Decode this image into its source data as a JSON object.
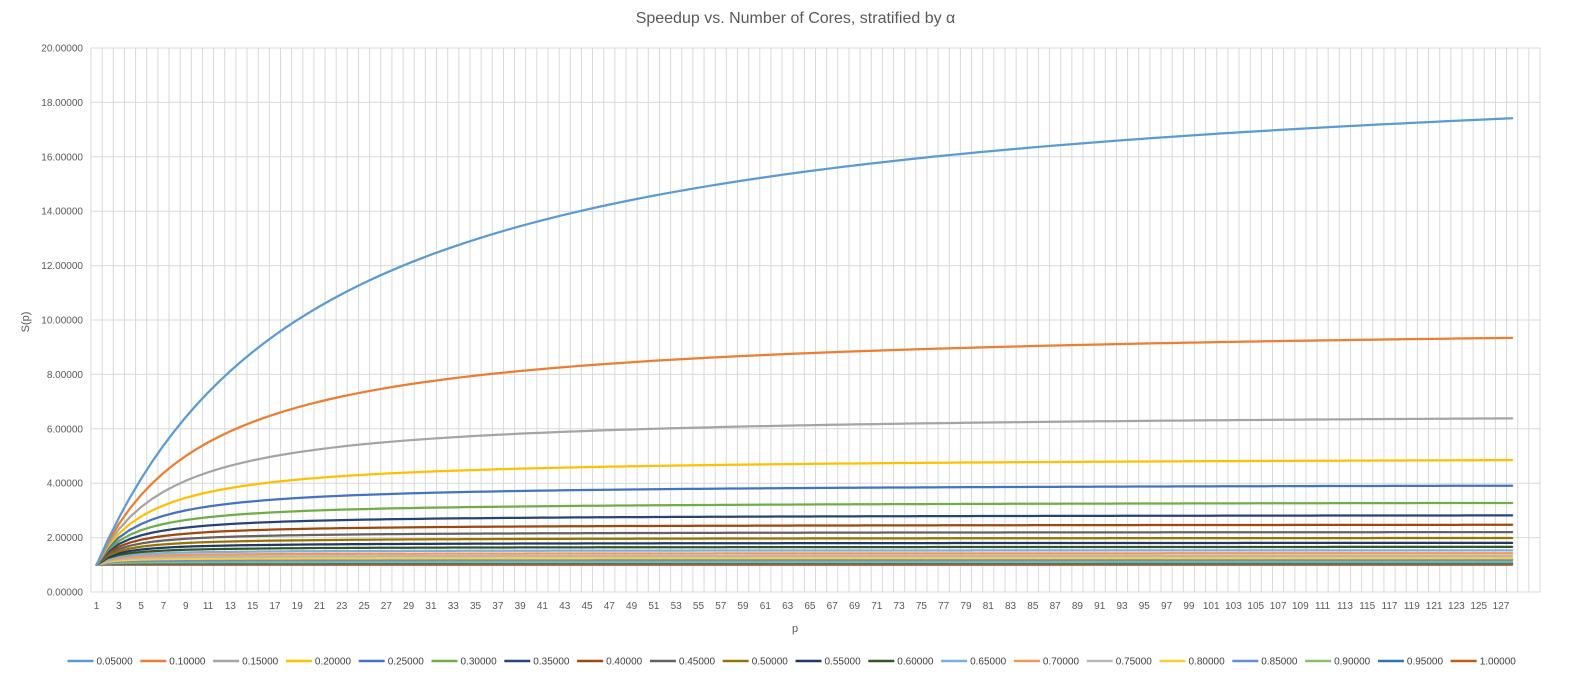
{
  "chart_data": {
    "type": "line",
    "title": "Speedup vs. Number of Cores, stratified by α",
    "xlabel": "p",
    "ylabel": "S(p)",
    "x_range": [
      1,
      128
    ],
    "ylim": [
      0,
      20
    ],
    "y_tick_step": 2,
    "y_tick_format_decimals": 5,
    "x_tick_labels": [
      "1",
      "3",
      "5",
      "7",
      "9",
      "11",
      "13",
      "15",
      "17",
      "19",
      "21",
      "23",
      "25",
      "27",
      "29",
      "31",
      "33",
      "35",
      "37",
      "39",
      "41",
      "43",
      "45",
      "47",
      "49",
      "51",
      "53",
      "55",
      "57",
      "59",
      "61",
      "63",
      "65",
      "67",
      "69",
      "71",
      "73",
      "75",
      "77",
      "79",
      "81",
      "83",
      "85",
      "87",
      "89",
      "91",
      "93",
      "95",
      "97",
      "99",
      "101",
      "103",
      "105",
      "107",
      "109",
      "111",
      "113",
      "115",
      "117",
      "119",
      "121",
      "123",
      "125",
      "127"
    ],
    "grid": true,
    "legend_position": "bottom",
    "series": [
      {
        "name": "0.05000",
        "alpha": 0.05,
        "color": "#5B9BD5"
      },
      {
        "name": "0.10000",
        "alpha": 0.1,
        "color": "#ED7D31"
      },
      {
        "name": "0.15000",
        "alpha": 0.15,
        "color": "#A5A5A5"
      },
      {
        "name": "0.20000",
        "alpha": 0.2,
        "color": "#FFC000"
      },
      {
        "name": "0.25000",
        "alpha": 0.25,
        "color": "#4472C4"
      },
      {
        "name": "0.30000",
        "alpha": 0.3,
        "color": "#70AD47"
      },
      {
        "name": "0.35000",
        "alpha": 0.35,
        "color": "#264478"
      },
      {
        "name": "0.40000",
        "alpha": 0.4,
        "color": "#9E480E"
      },
      {
        "name": "0.45000",
        "alpha": 0.45,
        "color": "#636363"
      },
      {
        "name": "0.50000",
        "alpha": 0.5,
        "color": "#997300"
      },
      {
        "name": "0.55000",
        "alpha": 0.55,
        "color": "#203864"
      },
      {
        "name": "0.60000",
        "alpha": 0.6,
        "color": "#375623"
      },
      {
        "name": "0.65000",
        "alpha": 0.65,
        "color": "#7CAFDD"
      },
      {
        "name": "0.70000",
        "alpha": 0.7,
        "color": "#F1975A"
      },
      {
        "name": "0.75000",
        "alpha": 0.75,
        "color": "#B7B7B7"
      },
      {
        "name": "0.80000",
        "alpha": 0.8,
        "color": "#FFCD33"
      },
      {
        "name": "0.85000",
        "alpha": 0.85,
        "color": "#698ED0"
      },
      {
        "name": "0.90000",
        "alpha": 0.9,
        "color": "#8CC168"
      },
      {
        "name": "0.95000",
        "alpha": 0.95,
        "color": "#2E75B6"
      },
      {
        "name": "1.00000",
        "alpha": 1.0,
        "color": "#C55A11"
      }
    ]
  }
}
